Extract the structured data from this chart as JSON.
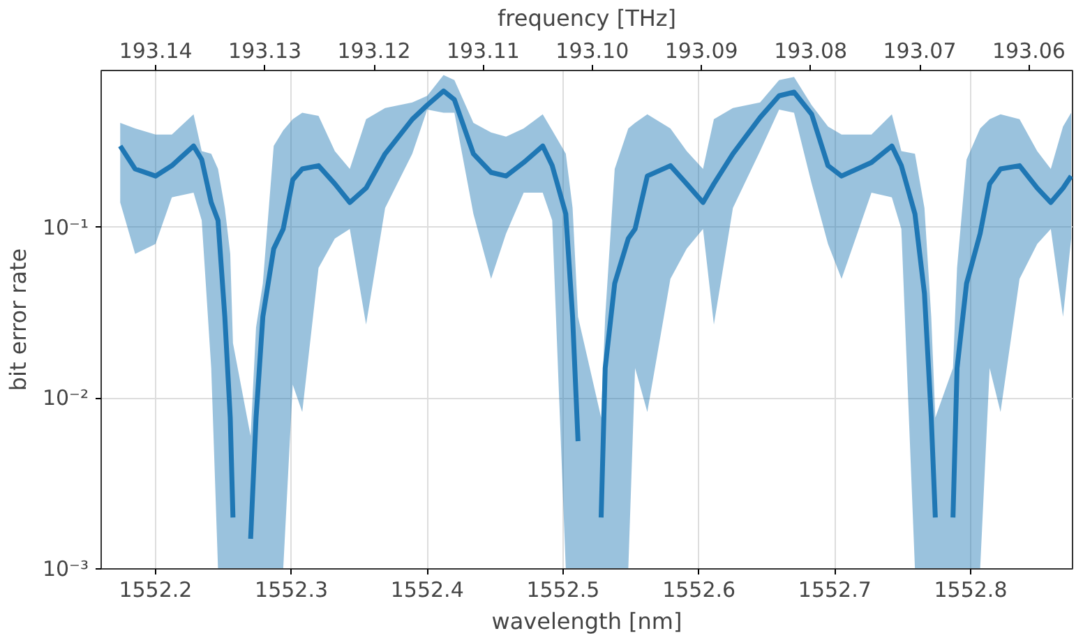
{
  "chart_data": {
    "type": "line",
    "xlabel": "wavelength [nm]",
    "ylabel": "bit error rate",
    "x2label": "frequency [THz]",
    "log": "y",
    "grid": true,
    "marker": "none",
    "line_style": "solid",
    "xlim": [
      1552.16,
      1552.875
    ],
    "xticks": [
      1552.2,
      1552.3,
      1552.4,
      1552.5,
      1552.6,
      1552.7,
      1552.8
    ],
    "x2lim": [
      193.145,
      193.056
    ],
    "x2ticks": [
      193.14,
      193.13,
      193.12,
      193.11,
      {
        "value": 193.1,
        "label": "193.10"
      },
      193.09,
      193.08,
      193.07,
      193.06
    ],
    "ylim": [
      0.001,
      0.83
    ],
    "yticks": [
      {
        "value": 0.001,
        "label": "10⁻³"
      },
      {
        "value": 0.01,
        "label": "10⁻²"
      },
      {
        "value": 0.1,
        "label": "10⁻¹"
      }
    ],
    "series": [
      {
        "color": "#1f77b4",
        "x": [
          1552.174,
          1552.185,
          1552.2,
          1552.212,
          1552.228,
          1552.234,
          1552.241,
          1552.246,
          1552.251,
          1552.255,
          1552.257,
          1552.263,
          1552.27,
          1552.274,
          1552.279,
          1552.287,
          1552.294,
          1552.301,
          1552.308,
          1552.32,
          1552.332,
          1552.343,
          1552.355,
          1552.369,
          1552.389,
          1552.4,
          1552.412,
          1552.42,
          1552.434,
          1552.447,
          1552.458,
          1552.471,
          1552.485,
          1552.492,
          1552.502,
          1552.507,
          1552.511,
          1552.517,
          1552.528,
          1552.531,
          1552.538,
          1552.548,
          1552.553,
          1552.562,
          1552.579,
          1552.591,
          1552.603,
          1552.611,
          1552.625,
          1552.645,
          1552.659,
          1552.67,
          1552.683,
          1552.695,
          1552.705,
          1552.727,
          1552.742,
          1552.749,
          1552.759,
          1552.766,
          1552.771,
          1552.774,
          1552.78,
          1552.787,
          1552.79,
          1552.797,
          1552.807,
          1552.814,
          1552.822,
          1552.836,
          1552.849,
          1552.859,
          1552.868,
          1552.874
        ],
        "values": [
          0.3,
          0.22,
          0.2,
          0.23,
          0.3,
          0.25,
          0.14,
          0.11,
          0.03,
          0.0077,
          0.002,
          null,
          0.0015,
          0.0077,
          0.03,
          0.075,
          0.098,
          0.19,
          0.22,
          0.23,
          0.18,
          0.14,
          0.17,
          0.27,
          0.43,
          0.52,
          0.63,
          0.56,
          0.27,
          0.21,
          0.2,
          0.24,
          0.3,
          0.23,
          0.12,
          0.03,
          0.0056,
          null,
          0.002,
          0.015,
          0.047,
          0.086,
          0.098,
          0.2,
          0.23,
          0.18,
          0.14,
          0.18,
          0.27,
          0.44,
          0.59,
          0.62,
          0.46,
          0.23,
          0.2,
          0.24,
          0.3,
          0.23,
          0.12,
          0.041,
          0.0077,
          0.002,
          null,
          0.002,
          0.015,
          0.047,
          0.092,
          0.18,
          0.22,
          0.23,
          0.17,
          0.14,
          0.17,
          0.2
        ],
        "lower": [
          0.14,
          0.07,
          0.08,
          0.15,
          0.16,
          0.11,
          0.015,
          0.001,
          0.001,
          0.001,
          0.001,
          null,
          0.001,
          0.001,
          0.001,
          0.001,
          0.001,
          0.012,
          0.0083,
          0.058,
          0.086,
          0.098,
          0.027,
          0.13,
          0.27,
          0.49,
          0.47,
          0.47,
          0.12,
          0.05,
          0.092,
          0.16,
          0.16,
          0.11,
          0.001,
          0.001,
          0.001,
          null,
          0.001,
          0.001,
          0.001,
          0.001,
          0.015,
          0.0083,
          0.05,
          0.075,
          0.098,
          0.027,
          0.13,
          0.28,
          0.49,
          0.47,
          0.18,
          0.08,
          0.05,
          0.16,
          0.15,
          0.098,
          0.001,
          0.001,
          0.001,
          0.001,
          null,
          0.001,
          0.001,
          0.001,
          0.001,
          0.015,
          0.0083,
          0.05,
          0.08,
          0.098,
          0.03,
          0.086
        ],
        "upper": [
          0.41,
          0.38,
          0.35,
          0.35,
          0.46,
          0.28,
          0.27,
          0.22,
          0.13,
          0.07,
          0.021,
          null,
          0.006,
          0.026,
          0.047,
          0.3,
          0.37,
          0.43,
          0.47,
          0.45,
          0.28,
          0.22,
          0.43,
          0.5,
          0.54,
          0.59,
          0.78,
          0.73,
          0.41,
          0.36,
          0.34,
          0.38,
          0.46,
          0.37,
          0.27,
          0.13,
          0.03,
          null,
          0.0077,
          0.03,
          0.22,
          0.38,
          0.41,
          0.46,
          0.38,
          0.28,
          0.22,
          0.43,
          0.5,
          0.54,
          0.73,
          0.76,
          0.52,
          0.39,
          0.35,
          0.35,
          0.46,
          0.28,
          0.27,
          0.13,
          0.03,
          0.0077,
          null,
          0.015,
          0.058,
          0.25,
          0.38,
          0.43,
          0.46,
          0.43,
          0.28,
          0.22,
          0.39,
          0.47
        ]
      }
    ]
  }
}
